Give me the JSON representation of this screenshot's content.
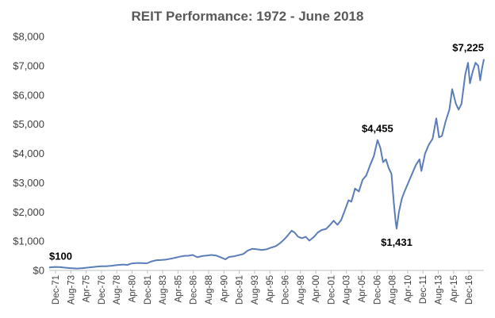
{
  "chart_data": {
    "type": "line",
    "title": "REIT Performance: 1972 - June 2018",
    "xlabel": "",
    "ylabel": "",
    "ylim": [
      0,
      8000
    ],
    "y_ticks": [
      "$0",
      "$1,000",
      "$2,000",
      "$3,000",
      "$4,000",
      "$5,000",
      "$6,000",
      "$7,000",
      "$8,000"
    ],
    "x_ticks": [
      "Dec-71",
      "Aug-73",
      "Apr-75",
      "Dec-76",
      "Aug-78",
      "Apr-80",
      "Dec-81",
      "Aug-83",
      "Apr-85",
      "Dec-86",
      "Aug-88",
      "Apr-90",
      "Dec-91",
      "Aug-93",
      "Apr-95",
      "Dec-96",
      "Aug-98",
      "Apr-00",
      "Dec-01",
      "Aug-03",
      "Apr-05",
      "Dec-06",
      "Aug-08",
      "Apr-10",
      "Dec-11",
      "Aug-13",
      "Apr-15",
      "Dec-16"
    ],
    "grid": false,
    "series": [
      {
        "color": "#5b7db8",
        "points": [
          [
            1971.92,
            100
          ],
          [
            1972.5,
            120
          ],
          [
            1973.0,
            115
          ],
          [
            1973.6,
            95
          ],
          [
            1974.2,
            80
          ],
          [
            1974.9,
            65
          ],
          [
            1975.5,
            80
          ],
          [
            1976.0,
            95
          ],
          [
            1976.5,
            110
          ],
          [
            1977.0,
            130
          ],
          [
            1977.5,
            140
          ],
          [
            1978.0,
            145
          ],
          [
            1978.6,
            160
          ],
          [
            1979.2,
            185
          ],
          [
            1979.8,
            200
          ],
          [
            1980.3,
            190
          ],
          [
            1980.8,
            240
          ],
          [
            1981.4,
            255
          ],
          [
            1981.9,
            250
          ],
          [
            1982.4,
            245
          ],
          [
            1982.9,
            310
          ],
          [
            1983.4,
            350
          ],
          [
            1983.9,
            355
          ],
          [
            1984.4,
            370
          ],
          [
            1984.9,
            400
          ],
          [
            1985.4,
            430
          ],
          [
            1985.9,
            470
          ],
          [
            1986.4,
            500
          ],
          [
            1986.9,
            505
          ],
          [
            1987.3,
            530
          ],
          [
            1987.8,
            450
          ],
          [
            1988.3,
            490
          ],
          [
            1988.8,
            510
          ],
          [
            1989.3,
            530
          ],
          [
            1989.8,
            510
          ],
          [
            1990.3,
            450
          ],
          [
            1990.8,
            380
          ],
          [
            1991.2,
            460
          ],
          [
            1991.7,
            480
          ],
          [
            1992.2,
            520
          ],
          [
            1992.7,
            560
          ],
          [
            1993.2,
            680
          ],
          [
            1993.7,
            740
          ],
          [
            1994.2,
            720
          ],
          [
            1994.7,
            700
          ],
          [
            1995.2,
            720
          ],
          [
            1995.7,
            780
          ],
          [
            1996.2,
            830
          ],
          [
            1996.7,
            940
          ],
          [
            1997.1,
            1060
          ],
          [
            1997.5,
            1200
          ],
          [
            1997.9,
            1360
          ],
          [
            1998.2,
            1300
          ],
          [
            1998.6,
            1150
          ],
          [
            1999.0,
            1100
          ],
          [
            1999.4,
            1150
          ],
          [
            1999.8,
            1020
          ],
          [
            2000.3,
            1150
          ],
          [
            2000.7,
            1300
          ],
          [
            2001.1,
            1380
          ],
          [
            2001.6,
            1420
          ],
          [
            2002.0,
            1550
          ],
          [
            2002.4,
            1700
          ],
          [
            2002.8,
            1560
          ],
          [
            2003.2,
            1720
          ],
          [
            2003.6,
            2050
          ],
          [
            2004.0,
            2400
          ],
          [
            2004.3,
            2350
          ],
          [
            2004.7,
            2800
          ],
          [
            2005.1,
            2700
          ],
          [
            2005.5,
            3100
          ],
          [
            2005.9,
            3250
          ],
          [
            2006.3,
            3600
          ],
          [
            2006.7,
            3900
          ],
          [
            2007.1,
            4455
          ],
          [
            2007.4,
            4200
          ],
          [
            2007.7,
            3700
          ],
          [
            2008.0,
            3800
          ],
          [
            2008.3,
            3500
          ],
          [
            2008.6,
            3300
          ],
          [
            2008.85,
            2300
          ],
          [
            2009.05,
            1650
          ],
          [
            2009.15,
            1431
          ],
          [
            2009.4,
            2000
          ],
          [
            2009.7,
            2450
          ],
          [
            2010.0,
            2700
          ],
          [
            2010.4,
            3000
          ],
          [
            2010.8,
            3300
          ],
          [
            2011.2,
            3600
          ],
          [
            2011.6,
            3800
          ],
          [
            2011.8,
            3400
          ],
          [
            2012.2,
            4000
          ],
          [
            2012.6,
            4300
          ],
          [
            2013.0,
            4500
          ],
          [
            2013.4,
            5200
          ],
          [
            2013.7,
            4550
          ],
          [
            2014.0,
            4600
          ],
          [
            2014.4,
            5100
          ],
          [
            2014.8,
            5500
          ],
          [
            2015.1,
            6200
          ],
          [
            2015.5,
            5700
          ],
          [
            2015.8,
            5500
          ],
          [
            2016.1,
            5700
          ],
          [
            2016.5,
            6700
          ],
          [
            2016.8,
            7100
          ],
          [
            2017.0,
            6400
          ],
          [
            2017.3,
            6800
          ],
          [
            2017.6,
            7100
          ],
          [
            2017.9,
            7000
          ],
          [
            2018.1,
            6500
          ],
          [
            2018.3,
            6900
          ],
          [
            2018.5,
            7225
          ]
        ]
      }
    ],
    "annotations": [
      {
        "text": "$100",
        "x": 1971.92,
        "y": 100,
        "pos": "above"
      },
      {
        "text": "$4,455",
        "x": 2007.1,
        "y": 4455,
        "pos": "above"
      },
      {
        "text": "$1,431",
        "x": 2009.15,
        "y": 1431,
        "pos": "below"
      },
      {
        "text": "$7,225",
        "x": 2018.5,
        "y": 7225,
        "pos": "above"
      }
    ]
  }
}
